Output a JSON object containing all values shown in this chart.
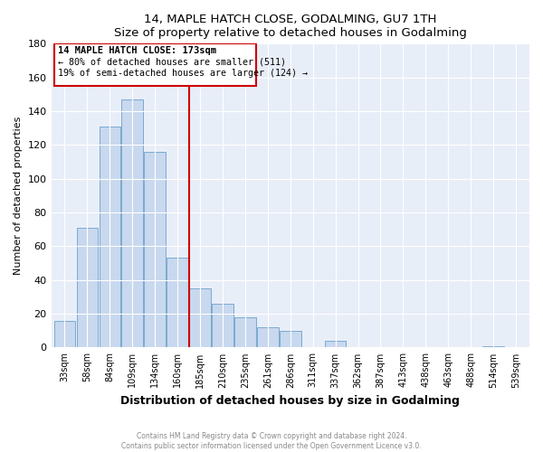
{
  "title": "14, MAPLE HATCH CLOSE, GODALMING, GU7 1TH",
  "subtitle": "Size of property relative to detached houses in Godalming",
  "xlabel": "Distribution of detached houses by size in Godalming",
  "ylabel": "Number of detached properties",
  "bar_labels": [
    "33sqm",
    "58sqm",
    "84sqm",
    "109sqm",
    "134sqm",
    "160sqm",
    "185sqm",
    "210sqm",
    "235sqm",
    "261sqm",
    "286sqm",
    "311sqm",
    "337sqm",
    "362sqm",
    "387sqm",
    "413sqm",
    "438sqm",
    "463sqm",
    "488sqm",
    "514sqm",
    "539sqm"
  ],
  "bar_values": [
    16,
    71,
    131,
    147,
    116,
    53,
    35,
    26,
    18,
    12,
    10,
    0,
    4,
    0,
    0,
    0,
    0,
    0,
    0,
    1,
    0
  ],
  "bar_color": "#c8d8ee",
  "bar_edge_color": "#7aaad0",
  "property_line_label": "14 MAPLE HATCH CLOSE: 173sqm",
  "annotation_line1": "← 80% of detached houses are smaller (511)",
  "annotation_line2": "19% of semi-detached houses are larger (124) →",
  "vline_color": "#cc0000",
  "annotation_box_edge_color": "#cc0000",
  "ylim": [
    0,
    180
  ],
  "yticks": [
    0,
    20,
    40,
    60,
    80,
    100,
    120,
    140,
    160,
    180
  ],
  "footer1": "Contains HM Land Registry data © Crown copyright and database right 2024.",
  "footer2": "Contains public sector information licensed under the Open Government Licence v3.0.",
  "background_color": "#ffffff",
  "plot_bg_color": "#e8eef8"
}
